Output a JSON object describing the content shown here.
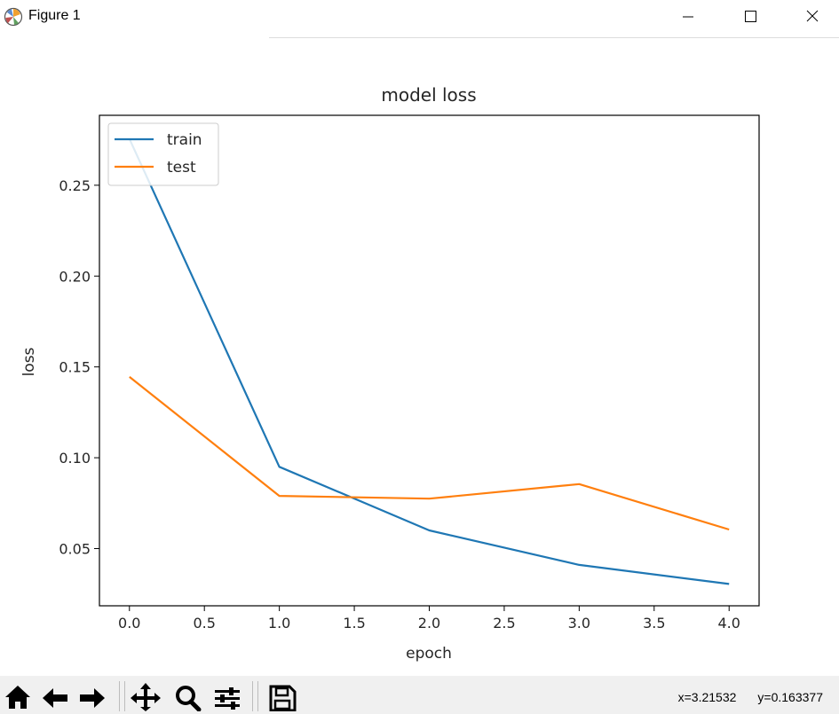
{
  "window": {
    "title": "Figure 1"
  },
  "status": {
    "x": "x=3.21532",
    "y": "y=0.163377"
  },
  "toolbar": [
    "home-icon",
    "back-arrow-icon",
    "forward-arrow-icon",
    "pan-icon",
    "zoom-icon",
    "configure-subplots-icon",
    "save-icon"
  ],
  "chart_data": {
    "type": "line",
    "title": "model loss",
    "xlabel": "epoch",
    "ylabel": "loss",
    "x": [
      0,
      1,
      2,
      3,
      4
    ],
    "xlim": [
      -0.2,
      4.2
    ],
    "ylim": [
      0.0185,
      0.2885
    ],
    "xticks": [
      "0.0",
      "0.5",
      "1.0",
      "1.5",
      "2.0",
      "2.5",
      "3.0",
      "3.5",
      "4.0"
    ],
    "yticks": [
      "0.05",
      "0.10",
      "0.15",
      "0.20",
      "0.25"
    ],
    "legend_position": "upper left",
    "series": [
      {
        "name": "train",
        "color": "#1f77b4",
        "values": [
          0.2755,
          0.095,
          0.06,
          0.041,
          0.0305
        ]
      },
      {
        "name": "test",
        "color": "#ff7f0e",
        "values": [
          0.1445,
          0.079,
          0.0775,
          0.0855,
          0.0605
        ]
      }
    ]
  }
}
